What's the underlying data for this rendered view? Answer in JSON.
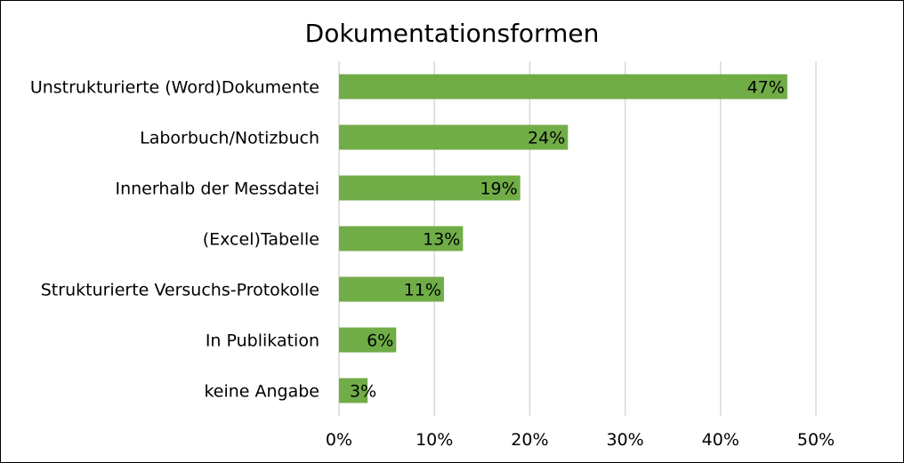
{
  "chart_data": {
    "type": "bar",
    "orientation": "horizontal",
    "title": "Dokumentationsformen",
    "categories": [
      "Unstrukturierte (Word)Dokumente",
      "Laborbuch/Notizbuch",
      "Innerhalb der Messdatei",
      "(Excel)Tabelle",
      "Strukturierte Versuchs-Protokolle",
      "In Publikation",
      "keine Angabe"
    ],
    "values": [
      47,
      24,
      19,
      13,
      11,
      6,
      3
    ],
    "data_labels": [
      "47%",
      "24%",
      "19%",
      "13%",
      "11%",
      "6%",
      "3%"
    ],
    "xlim": [
      0,
      50
    ],
    "x_ticks": [
      0,
      10,
      20,
      30,
      40,
      50
    ],
    "x_tick_labels": [
      "0%",
      "10%",
      "20%",
      "30%",
      "40%",
      "50%"
    ],
    "xlabel": "",
    "ylabel": "",
    "grid": true,
    "legend": "none",
    "bar_color": "#70ad47",
    "grid_color": "#d9d9d9"
  }
}
